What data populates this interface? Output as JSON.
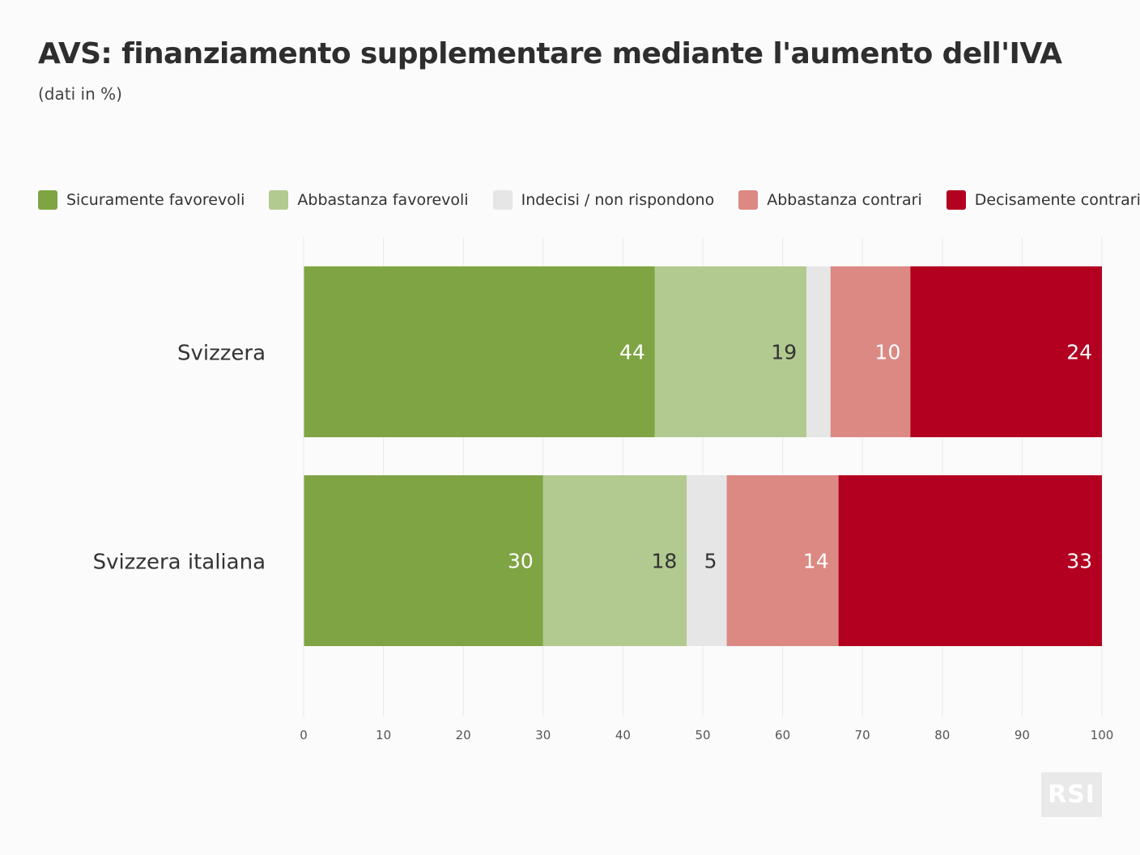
{
  "header": {
    "title": "AVS: finanziamento supplementare mediante l'aumento dell'IVA",
    "subtitle": "(dati in %)"
  },
  "logo": {
    "text": "RSI"
  },
  "chart_data": {
    "type": "bar",
    "orientation": "horizontal",
    "stacked": true,
    "title": "AVS: finanziamento supplementare mediante l'aumento dell'IVA",
    "subtitle": "(dati in %)",
    "xlabel": "",
    "ylabel": "",
    "xlim": [
      0,
      100
    ],
    "xticks": [
      0,
      10,
      20,
      30,
      40,
      50,
      60,
      70,
      80,
      90,
      100
    ],
    "grid": true,
    "legend_position": "top",
    "categories": [
      "Svizzera",
      "Svizzera italiana"
    ],
    "series": [
      {
        "name": "Sicuramente favorevoli",
        "values": [
          44,
          30
        ],
        "color": "#7fa444",
        "label_color": "#ffffff"
      },
      {
        "name": "Abbastanza favorevoli",
        "values": [
          19,
          18
        ],
        "color": "#b2ca8f",
        "label_color": "#333333"
      },
      {
        "name": "Indecisi / non rispondono",
        "values": [
          3,
          5
        ],
        "color": "#e6e6e6",
        "label_color": "#333333",
        "labels_shown": [
          false,
          true
        ]
      },
      {
        "name": "Abbastanza contrari",
        "values": [
          10,
          14
        ],
        "color": "#dc8983",
        "label_color": "#ffffff"
      },
      {
        "name": "Decisamente contrari",
        "values": [
          24,
          33
        ],
        "color": "#b30020",
        "label_color": "#ffffff"
      }
    ]
  }
}
